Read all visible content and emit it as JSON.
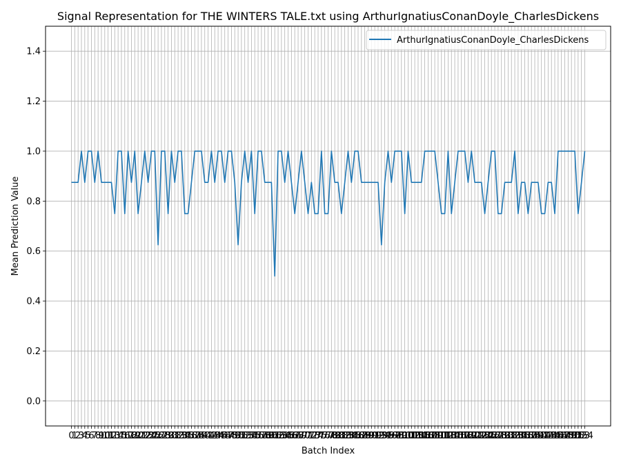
{
  "chart_data": {
    "type": "line",
    "title": "Signal Representation for THE WINTERS TALE.txt using ArthurIgnatiusConanDoyle_CharlesDickens",
    "xlabel": "Batch Index",
    "ylabel": "Mean Prediction Value",
    "ylim": [
      -0.1,
      1.5
    ],
    "yticks": [
      0.0,
      0.2,
      0.4,
      0.6,
      0.8,
      1.0,
      1.2,
      1.4
    ],
    "grid": true,
    "legend_position": "top-right",
    "series": [
      {
        "name": "ArthurIgnatiusConanDoyle_CharlesDickens",
        "color": "#1f77b4",
        "values": [
          0.875,
          0.875,
          0.875,
          1.0,
          0.875,
          1.0,
          1.0,
          0.875,
          1.0,
          0.875,
          0.875,
          0.875,
          0.875,
          0.75,
          1.0,
          1.0,
          0.75,
          1.0,
          0.875,
          1.0,
          0.75,
          0.875,
          1.0,
          0.875,
          1.0,
          1.0,
          0.625,
          1.0,
          1.0,
          0.75,
          1.0,
          0.875,
          1.0,
          1.0,
          0.75,
          0.75,
          0.875,
          1.0,
          1.0,
          1.0,
          0.875,
          0.875,
          1.0,
          0.875,
          1.0,
          1.0,
          0.875,
          1.0,
          1.0,
          0.875,
          0.625,
          0.875,
          1.0,
          0.875,
          1.0,
          0.75,
          1.0,
          1.0,
          0.875,
          0.875,
          0.875,
          0.5,
          1.0,
          1.0,
          0.875,
          1.0,
          0.875,
          0.75,
          0.875,
          1.0,
          0.875,
          0.75,
          0.875,
          0.75,
          0.75,
          1.0,
          0.75,
          0.75,
          1.0,
          0.875,
          0.875,
          0.75,
          0.875,
          1.0,
          0.875,
          1.0,
          1.0,
          0.875,
          0.875,
          0.875,
          0.875,
          0.875,
          0.875,
          0.625,
          0.875,
          1.0,
          0.875,
          1.0,
          1.0,
          1.0,
          0.75,
          1.0,
          0.875,
          0.875,
          0.875,
          0.875,
          1.0,
          1.0,
          1.0,
          1.0,
          0.875,
          0.75,
          0.75,
          1.0,
          0.75,
          0.875,
          1.0,
          1.0,
          1.0,
          0.875,
          1.0,
          0.875,
          0.875,
          0.875,
          0.75,
          0.875,
          1.0,
          1.0,
          0.75,
          0.75,
          0.875,
          0.875,
          0.875,
          1.0,
          0.75,
          0.875,
          0.875,
          0.75,
          0.875,
          0.875,
          0.875,
          0.75,
          0.75,
          0.875,
          0.875,
          0.75,
          1.0,
          1.0,
          1.0,
          1.0,
          1.0,
          1.0,
          0.75,
          0.875,
          1.0
        ]
      }
    ]
  }
}
